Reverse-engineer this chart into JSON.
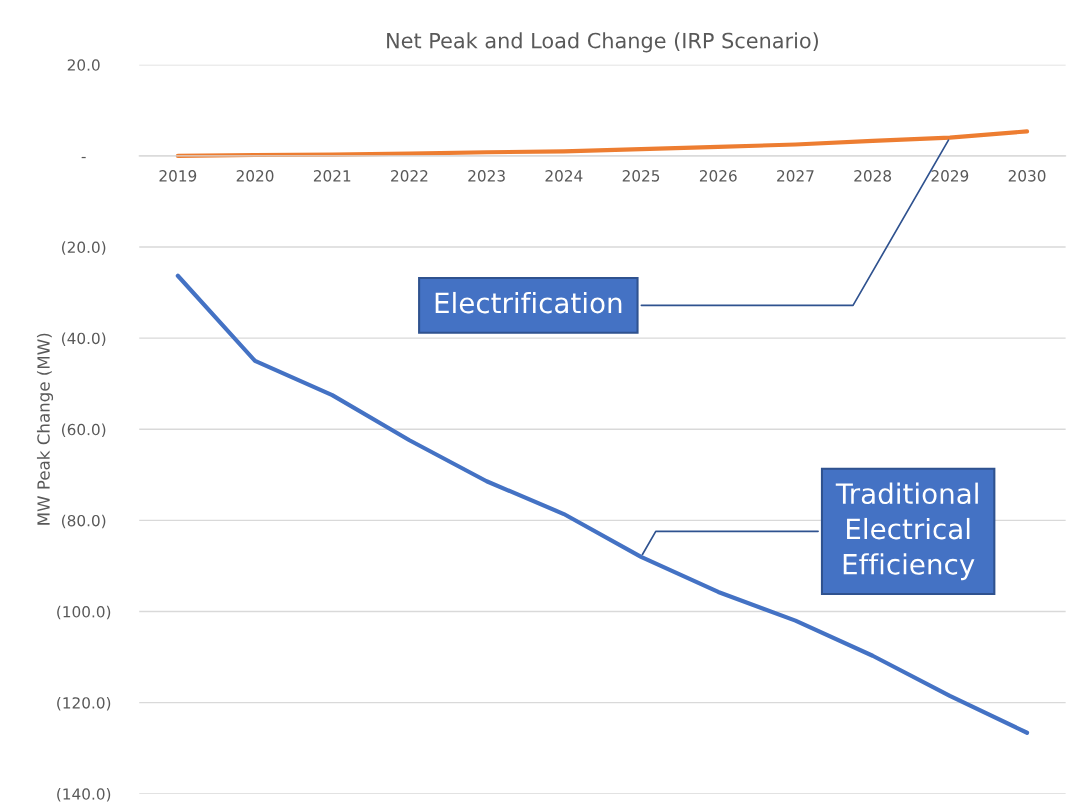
{
  "chart_data": {
    "type": "line",
    "title": "Net Peak and Load Change (IRP Scenario)",
    "ylabel": "MW Peak Change (MW)",
    "categories": [
      "2019",
      "2020",
      "2021",
      "2022",
      "2023",
      "2024",
      "2025",
      "2026",
      "2027",
      "2028",
      "2029",
      "2030"
    ],
    "series": [
      {
        "color": "#4472c4",
        "values": [
          -26.3,
          -45,
          -52.5,
          -62.4,
          -71.4,
          -78.6,
          -88,
          -95.7,
          -102,
          -109.7,
          -118.5,
          -126.6
        ]
      },
      {
        "color": "#ed7d31",
        "values": [
          0,
          0.2,
          0.3,
          0.5,
          0.8,
          1,
          1.5,
          2,
          2.5,
          3.3,
          4,
          5.4
        ]
      }
    ],
    "ylim": [
      -140,
      20
    ],
    "yticks": [
      {
        "value": 20,
        "label": "20.0"
      },
      {
        "value": 0,
        "label": "-"
      },
      {
        "value": -20,
        "label": "(20.0)"
      },
      {
        "value": -40,
        "label": "(40.0)"
      },
      {
        "value": -60,
        "label": "(60.0)"
      },
      {
        "value": -80,
        "label": "(80.0)"
      },
      {
        "value": -100,
        "label": "(100.0)"
      },
      {
        "value": -120,
        "label": "(120.0)"
      },
      {
        "value": -140,
        "label": "(140.0)"
      }
    ],
    "grid": "y",
    "line_style": "solid",
    "annotations": [
      {
        "text": "Electrification",
        "x": "2029",
        "y": 4
      },
      {
        "text": "Traditional\nElectrical\nEfficiency",
        "x": "2025",
        "y": -88
      }
    ]
  }
}
